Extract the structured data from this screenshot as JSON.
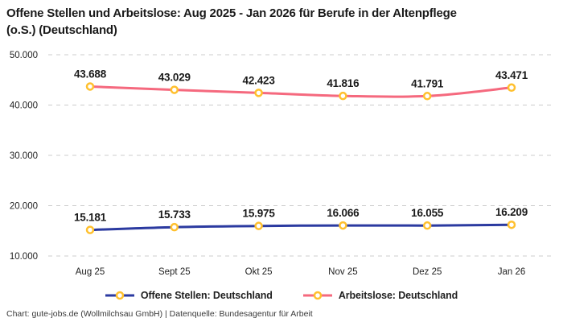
{
  "title_line1": "Offene Stellen und Arbeitslose: Aug 2025 - Jan 2026 für Berufe in der Altenpflege",
  "title_line2": "(o.S.) (Deutschland)",
  "footer": "Chart: gute-jobs.de (Wollmilchsau GmbH) | Datenquelle: Bundesagentur für Arbeit",
  "colors": {
    "open_positions_line": "#2B3AA0",
    "unemployed_line": "#F5697E",
    "marker_stroke": "#FFC02E",
    "marker_fill": "#FFFFFF",
    "gridline": "#CCCCCC",
    "axis_text": "#222222",
    "data_label_text": "#1A1A1A"
  },
  "chart_data": {
    "type": "line",
    "title": "Offene Stellen und Arbeitslose: Aug 2025 - Jan 2026 für Berufe in der Altenpflege (o.S.) (Deutschland)",
    "xlabel": "",
    "ylabel": "",
    "categories": [
      "Aug 25",
      "Sept 25",
      "Okt 25",
      "Nov 25",
      "Dez 25",
      "Jan 26"
    ],
    "series": [
      {
        "name": "Offene Stellen: Deutschland",
        "color": "#2B3AA0",
        "values": [
          15181,
          15733,
          15975,
          16066,
          16055,
          16209
        ],
        "value_labels": [
          "15.181",
          "15.733",
          "15.975",
          "16.066",
          "16.055",
          "16.209"
        ]
      },
      {
        "name": "Arbeitslose: Deutschland",
        "color": "#F5697E",
        "values": [
          43688,
          43029,
          42423,
          41816,
          41791,
          43471
        ],
        "value_labels": [
          "43.688",
          "43.029",
          "42.423",
          "41.816",
          "41.791",
          "43.471"
        ]
      }
    ],
    "y_ticks": [
      {
        "value": 10000,
        "label": "10.000"
      },
      {
        "value": 20000,
        "label": "20.000"
      },
      {
        "value": 30000,
        "label": "30.000"
      },
      {
        "value": 40000,
        "label": "40.000"
      },
      {
        "value": 50000,
        "label": "50.000"
      }
    ],
    "ylim": [
      10000,
      50000
    ],
    "grid": "horizontal-dashed",
    "legend_position": "bottom",
    "marker": "circle-yellow-stroke-white-fill"
  }
}
